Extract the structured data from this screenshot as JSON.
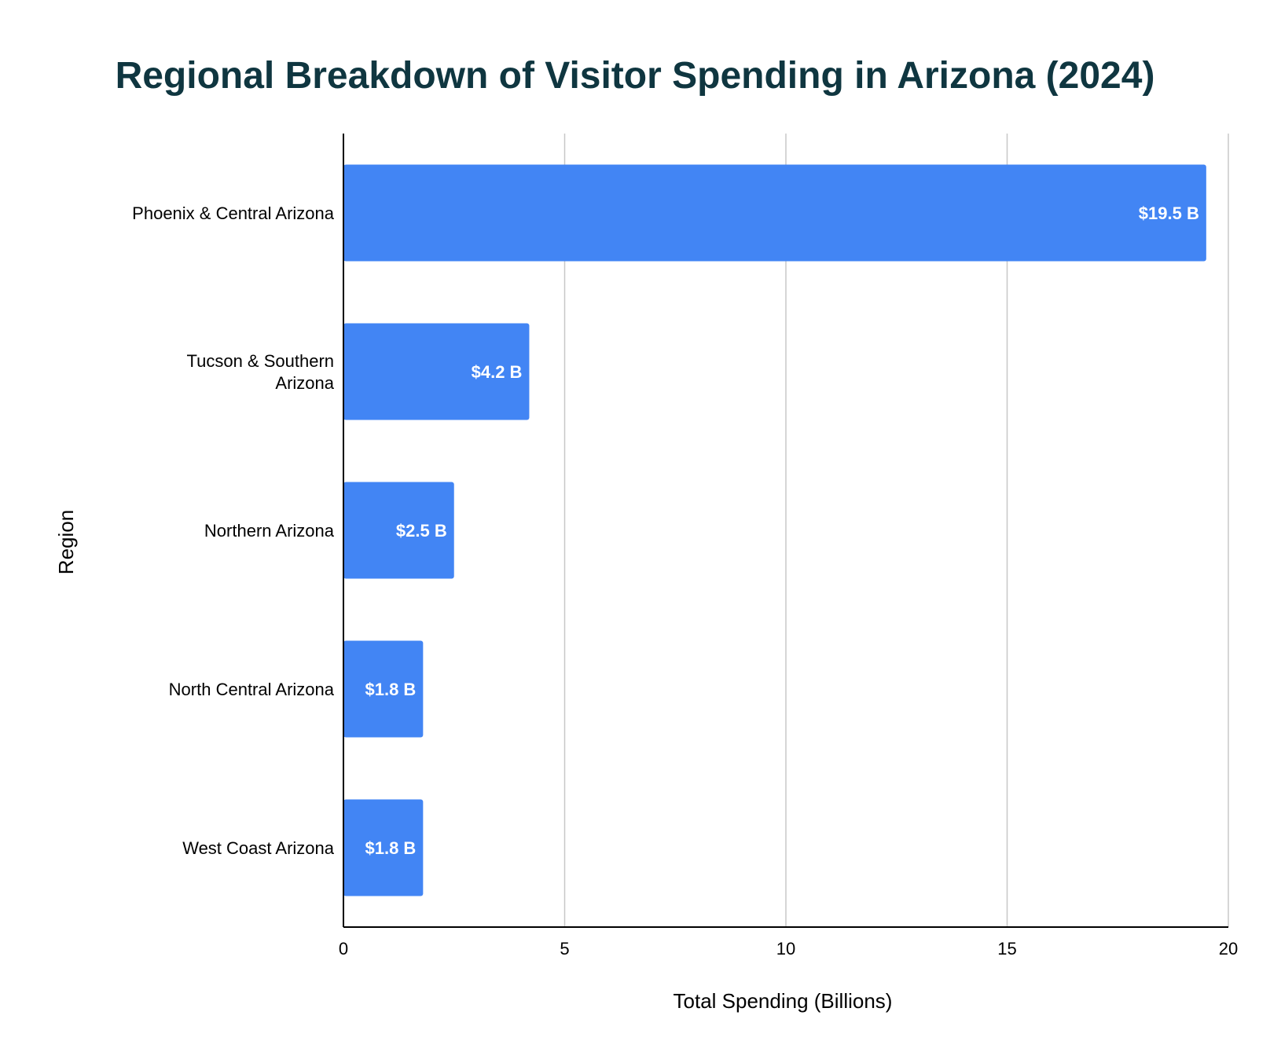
{
  "chart_data": {
    "type": "bar",
    "orientation": "horizontal",
    "title": "Regional Breakdown of Visitor Spending in Arizona (2024)",
    "xlabel": "Total Spending (Billions)",
    "ylabel": "Region",
    "xlim": [
      0,
      20
    ],
    "xticks": [
      0,
      5,
      10,
      15,
      20
    ],
    "grid": true,
    "legend": "none",
    "categories": [
      [
        "Phoenix & Central Arizona"
      ],
      [
        "Tucson & Southern",
        "Arizona"
      ],
      [
        "Northern Arizona"
      ],
      [
        "North Central Arizona"
      ],
      [
        "West Coast Arizona"
      ]
    ],
    "values": [
      19.5,
      4.2,
      2.5,
      1.8,
      1.8
    ],
    "data_labels": [
      "$19.5 B",
      "$4.2 B",
      "$2.5 B",
      "$1.8 B",
      "$1.8 B"
    ],
    "colors": {
      "bar": "#4285f4",
      "title": "#0f3640",
      "grid": "#c8c8c8",
      "axis": "#000000",
      "data_label": "#ffffff"
    }
  }
}
